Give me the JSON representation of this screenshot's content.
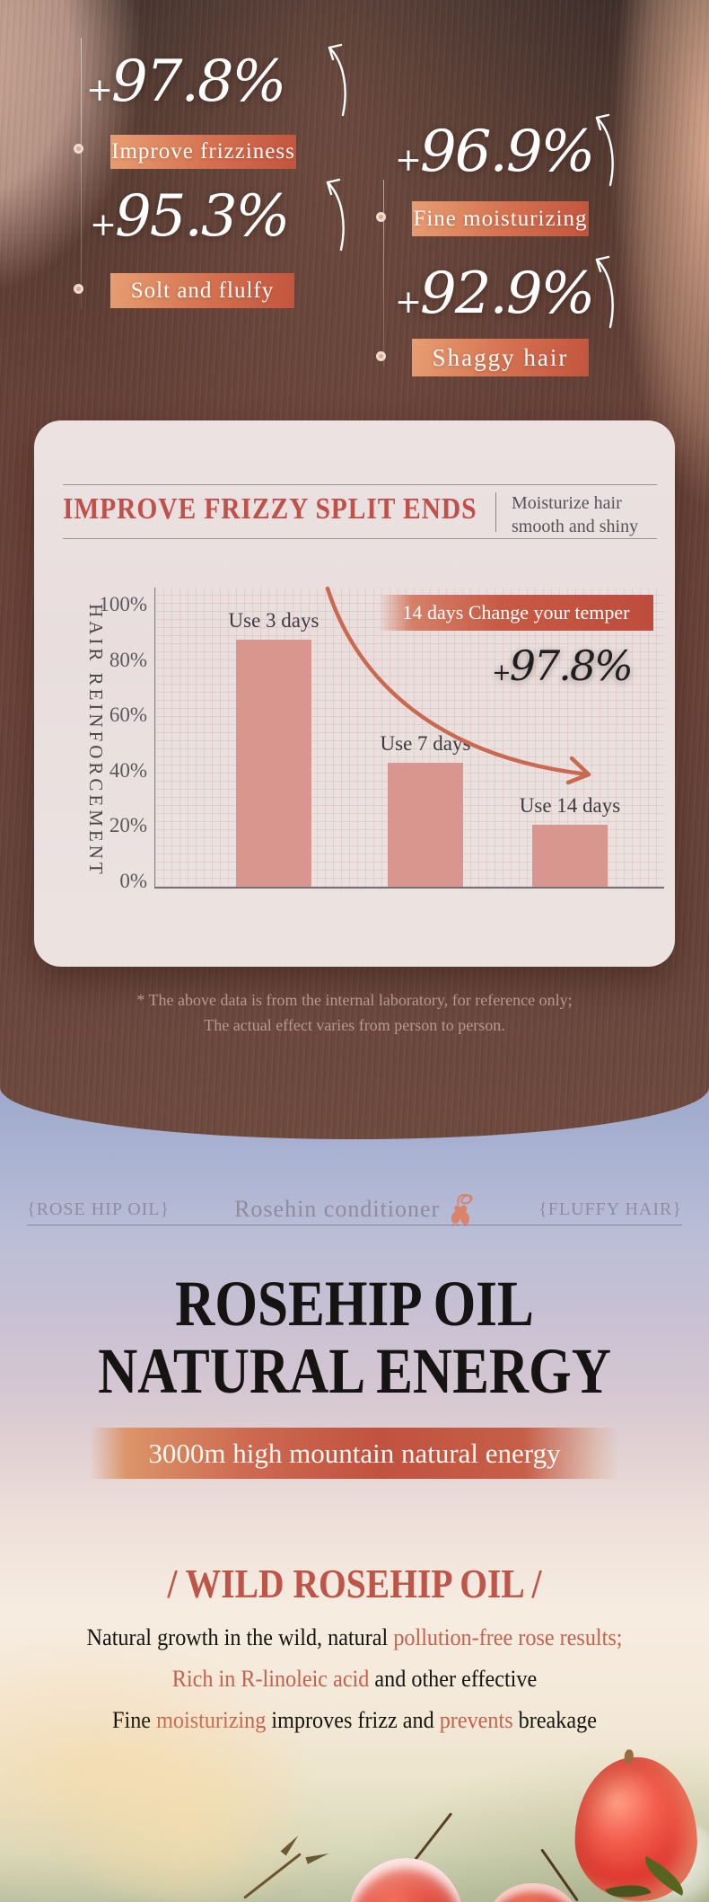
{
  "hero": {
    "stats": [
      {
        "value": "+97.8%",
        "label": "Improve frizziness"
      },
      {
        "value": "+95.3%",
        "label": "Solt and flulfy"
      },
      {
        "value": "+96.9%",
        "label": "Fine moisturizing"
      },
      {
        "value": "+92.9%",
        "label": "Shaggy hair"
      }
    ]
  },
  "card": {
    "title": "IMPROVE FRIZZY SPLIT ENDS",
    "subtitle": "Moisturize hair smooth and shiny",
    "badge": "14 days Change your temper",
    "highlight": "+97.8%"
  },
  "chart_data": {
    "type": "bar",
    "title": "IMPROVE FRIZZY SPLIT ENDS",
    "categories": [
      "Use 3 days",
      "Use 7 days",
      "Use 14 days"
    ],
    "values": [
      88,
      44,
      22
    ],
    "unit": "%",
    "xlabel": "",
    "ylabel": "HAIR REINFORCEMENT",
    "yticks": [
      "100%",
      "80%",
      "60%",
      "40%",
      "20%",
      "0%"
    ],
    "ylim": [
      0,
      100
    ],
    "grid": true,
    "legend": "none",
    "annotations": [
      "14 days Change your temper",
      "+97.8%"
    ],
    "bar_color": "#d9968e",
    "arrow_color": "#c96a50"
  },
  "disclaimer": {
    "line1": "* The above data is from the internal laboratory, for reference only;",
    "line2": "The actual effect varies from person to person."
  },
  "lower": {
    "tag_left": "{ROSE HIP OIL}",
    "brand": "Rosehin conditioner",
    "tag_right": "{FLUFFY HAIR}",
    "title_line1": "ROSEHIP OIL",
    "title_line2": "NATURAL ENERGY",
    "banner": "3000m high mountain natural energy",
    "heading": "/ WILD ROSEHIP OIL /",
    "body": {
      "l1a": "Natural growth in the wild, natural ",
      "l1b": "pollution-free rose results;",
      "l2a": "Rich in R-linoleic acid",
      "l2b": " and other effective",
      "l3a": "Fine ",
      "l3b": "moisturizing",
      "l3c": " improves frizz and ",
      "l3d": "prevents",
      "l3e": " breakage"
    }
  },
  "colors": {
    "accent_red": "#c0544a",
    "stat_chip_start": "#e89e72",
    "stat_chip_end": "#c2543e",
    "bar_fill": "#d9968e",
    "card_bg": "#ebe1e0",
    "hero_brown": "#67443c",
    "sky_blue": "#a8b2d1",
    "cream": "#f4eadf",
    "berry_red": "#e0392f"
  }
}
